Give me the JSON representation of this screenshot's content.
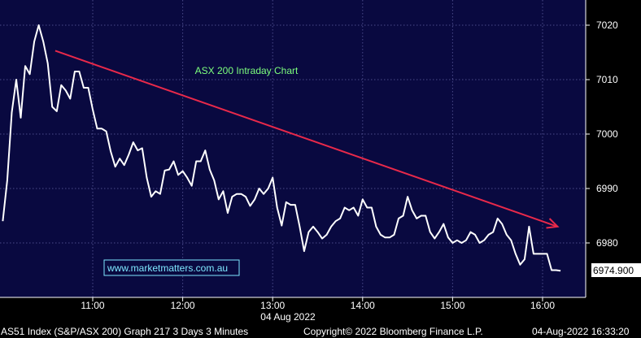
{
  "chart_data": {
    "type": "line",
    "title": "ASX 200 Intraday Chart",
    "xlabel": "04 Aug 2022",
    "ylabel": "",
    "x_ticks": [
      "11:00",
      "12:00",
      "13:00",
      "14:00",
      "15:00",
      "16:00"
    ],
    "y_ticks": [
      6980,
      6990,
      7000,
      7010,
      7020
    ],
    "ylim": [
      6970,
      7024
    ],
    "grid": true,
    "last_value_label": "6974.900",
    "website": "www.marketmatters.com.au",
    "colors": {
      "background": "#090940",
      "grid": "#4a4a8a",
      "line": "#ffffff",
      "trend_arrow": "#e8294a",
      "title": "#7dff7d",
      "website_text": "#7fe8ff"
    },
    "trend_arrow": {
      "from": [
        "10:35",
        7015.3
      ],
      "to": [
        "16:10",
        6983.0
      ]
    },
    "series": [
      {
        "x": [
          "10:00",
          "10:03",
          "10:06",
          "10:09",
          "10:12",
          "10:15",
          "10:18",
          "10:21",
          "10:24",
          "10:27",
          "10:30",
          "10:33",
          "10:36",
          "10:39",
          "10:42",
          "10:45",
          "10:48",
          "10:51",
          "10:54",
          "10:57",
          "11:00",
          "11:03",
          "11:06",
          "11:09",
          "11:12",
          "11:15",
          "11:18",
          "11:21",
          "11:24",
          "11:27",
          "11:30",
          "11:33",
          "11:36",
          "11:39",
          "11:42",
          "11:45",
          "11:48",
          "11:51",
          "11:54",
          "11:57",
          "12:00",
          "12:03",
          "12:06",
          "12:09",
          "12:12",
          "12:15",
          "12:18",
          "12:21",
          "12:24",
          "12:27",
          "12:30",
          "12:33",
          "12:36",
          "12:39",
          "12:42",
          "12:45",
          "12:48",
          "12:51",
          "12:54",
          "12:57",
          "13:00",
          "13:03",
          "13:06",
          "13:09",
          "13:12",
          "13:15",
          "13:18",
          "13:21",
          "13:24",
          "13:27",
          "13:30",
          "13:33",
          "13:36",
          "13:39",
          "13:42",
          "13:45",
          "13:48",
          "13:51",
          "13:54",
          "13:57",
          "14:00",
          "14:03",
          "14:06",
          "14:09",
          "14:12",
          "14:15",
          "14:18",
          "14:21",
          "14:24",
          "14:27",
          "14:30",
          "14:33",
          "14:36",
          "14:39",
          "14:42",
          "14:45",
          "14:48",
          "14:51",
          "14:54",
          "14:57",
          "15:00",
          "15:03",
          "15:06",
          "15:09",
          "15:12",
          "15:15",
          "15:18",
          "15:21",
          "15:24",
          "15:27",
          "15:30",
          "15:33",
          "15:36",
          "15:39",
          "15:42",
          "15:45",
          "15:48",
          "15:51",
          "15:54",
          "15:57",
          "16:00",
          "16:03",
          "16:06",
          "16:09",
          "16:12"
        ],
        "values": [
          6984.0,
          6991.5,
          7004.0,
          7010.0,
          7003.0,
          7012.5,
          7011.0,
          7017.0,
          7020.0,
          7017.0,
          7013.0,
          7005.0,
          7004.2,
          7009.0,
          7008.0,
          7006.5,
          7011.5,
          7011.5,
          7008.5,
          7008.5,
          7004.5,
          7001.0,
          7001.0,
          7000.5,
          6996.8,
          6994.0,
          6995.5,
          6994.3,
          6996.2,
          6998.5,
          6997.0,
          6997.4,
          6992.0,
          6988.5,
          6989.5,
          6989.0,
          6993.3,
          6993.5,
          6995.0,
          6992.5,
          6993.2,
          6992.0,
          6990.5,
          6995.0,
          6995.0,
          6997.0,
          6993.5,
          6991.5,
          6988.0,
          6989.5,
          6985.5,
          6988.5,
          6989.0,
          6989.0,
          6988.5,
          6986.8,
          6988.0,
          6990.0,
          6989.0,
          6990.0,
          6992.0,
          6986.5,
          6983.2,
          6987.5,
          6987.0,
          6987.0,
          6983.0,
          6978.5,
          6982.0,
          6983.0,
          6982.0,
          6980.8,
          6981.5,
          6983.0,
          6984.0,
          6984.5,
          6986.5,
          6986.0,
          6986.5,
          6985.0,
          6988.0,
          6986.5,
          6986.5,
          6983.0,
          6981.5,
          6981.0,
          6981.0,
          6981.5,
          6984.5,
          6985.0,
          6988.5,
          6986.0,
          6984.5,
          6985.0,
          6985.0,
          6982.0,
          6980.8,
          6982.0,
          6983.5,
          6981.0,
          6980.0,
          6980.5,
          6980.0,
          6980.5,
          6982.0,
          6981.5,
          6980.0,
          6980.5,
          6981.5,
          6982.0,
          6984.5,
          6983.5,
          6981.5,
          6980.5,
          6978.0,
          6976.0,
          6977.0,
          6983.0,
          6978.0,
          6978.0,
          6978.0,
          6978.0,
          6975.0,
          6975.0,
          6974.9
        ]
      }
    ]
  },
  "footer": {
    "left": "AS51 Index (S&P/ASX 200) Graph 217 3 Days 3 Minutes",
    "middle": "Copyright© 2022 Bloomberg Finance L.P.",
    "right": "04-Aug-2022 16:33:20"
  }
}
